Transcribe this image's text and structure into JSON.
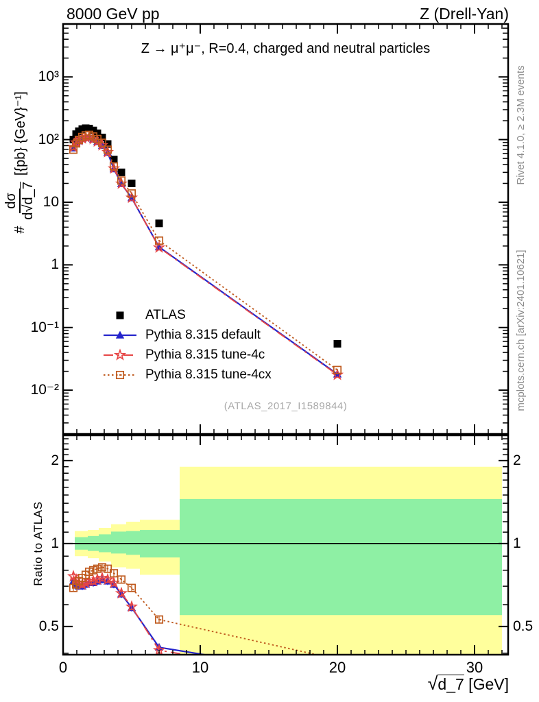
{
  "header": {
    "left": "8000 GeV pp",
    "right": "Z (Drell-Yan)"
  },
  "captions": {
    "rivet": "Rivet 4.1.0, ≥ 2.3M events",
    "mcplots": "mcplots.cern.ch [arXiv:2401.10621]",
    "watermark": "(ATLAS_2017_I1589844)"
  },
  "axes": {
    "y_main": {
      "prefix": "#",
      "frac_num": "dσ",
      "frac_den_pre": "d√",
      "frac_den_arg": "d_7",
      "units": "[{pb} {GeV}⁻¹]"
    },
    "y_ratio": {
      "label": "Ratio to ATLAS"
    },
    "x": {
      "radical": "√",
      "arg": "d_7",
      "units": " [GeV]"
    }
  },
  "chart_data": {
    "type": "line",
    "title": "Z → μ⁺μ⁻, R=0.4, charged and neutral particles",
    "xlabel": "√d_7 [GeV]",
    "ylabel": "# dσ/d√d_7 [{pb} {GeV}⁻¹]",
    "ratio_label": "Ratio to ATLAS",
    "xlim": [
      0,
      32.45
    ],
    "ylim_main": [
      0.002,
      7000
    ],
    "ylim_ratio": [
      0.395,
      2.47
    ],
    "x_ticks": {
      "major": [
        0,
        10,
        20,
        30
      ],
      "labels": [
        "0",
        "10",
        "20",
        "30"
      ]
    },
    "y_main_ticks": {
      "values": [
        1000,
        100,
        10,
        1,
        0.1,
        0.01
      ],
      "labels": [
        "10³",
        "10²",
        "10",
        "1",
        "10⁻¹",
        "10⁻²"
      ]
    },
    "y_ratio_ticks": {
      "values": [
        2,
        1,
        0.5
      ],
      "labels": [
        "2",
        "1",
        "0.5"
      ]
    },
    "x": [
      0.75,
      0.95,
      1.15,
      1.4,
      1.65,
      1.9,
      2.2,
      2.5,
      2.85,
      3.25,
      3.7,
      4.25,
      5.0,
      7.0,
      20.0
    ],
    "series": [
      {
        "name": "ATLAS",
        "color": "#000000",
        "marker": "filled-square",
        "line": "none",
        "y": [
          100,
          122,
          136,
          147,
          152,
          150,
          140,
          126,
          108,
          85,
          48,
          30,
          20,
          4.6,
          0.055
        ]
      },
      {
        "name": "Pythia 8.315 default",
        "color": "#2424cc",
        "marker": "filled-triangle",
        "line": "solid",
        "y": [
          73,
          87,
          95,
          103,
          108,
          108,
          101,
          92,
          80,
          62,
          34,
          19.7,
          11.7,
          1.93,
          0.018
        ],
        "ratio": [
          0.73,
          0.71,
          0.7,
          0.7,
          0.71,
          0.72,
          0.72,
          0.73,
          0.74,
          0.73,
          0.71,
          0.655,
          0.585,
          0.42,
          0.33
        ]
      },
      {
        "name": "Pythia 8.315 tune-4c",
        "color": "#e64545",
        "marker": "open-star",
        "line": "dashdot",
        "y": [
          76,
          90,
          98,
          104,
          109,
          110,
          102,
          93,
          81,
          63,
          34.6,
          19.8,
          11.8,
          1.89,
          0.0176
        ],
        "ratio": [
          0.76,
          0.74,
          0.72,
          0.71,
          0.72,
          0.73,
          0.73,
          0.74,
          0.75,
          0.74,
          0.72,
          0.66,
          0.59,
          0.41,
          0.32
        ]
      },
      {
        "name": "Pythia 8.315 tune-4cx",
        "color": "#bf5a1e",
        "marker": "open-square-dot",
        "line": "dotted",
        "y": [
          69,
          87,
          99,
          110,
          117,
          119,
          112,
          102,
          89,
          69,
          37.4,
          22.2,
          13.8,
          2.44,
          0.021
        ],
        "ratio": [
          0.69,
          0.71,
          0.73,
          0.75,
          0.77,
          0.79,
          0.8,
          0.81,
          0.82,
          0.81,
          0.78,
          0.74,
          0.69,
          0.53,
          0.38
        ]
      }
    ],
    "ratio_reference": 1,
    "ratio_bands": {
      "green_color": "#8ef0a4",
      "yellow_color": "#ffff9c",
      "bins": [
        {
          "x0": 0.85,
          "x1": 1.8,
          "green": [
            0.95,
            1.055
          ],
          "yellow": [
            0.9,
            1.11
          ]
        },
        {
          "x0": 1.8,
          "x1": 2.6,
          "green": [
            0.94,
            1.065
          ],
          "yellow": [
            0.885,
            1.12
          ]
        },
        {
          "x0": 2.6,
          "x1": 3.5,
          "green": [
            0.93,
            1.08
          ],
          "yellow": [
            0.86,
            1.14
          ]
        },
        {
          "x0": 3.5,
          "x1": 4.6,
          "green": [
            0.92,
            1.105
          ],
          "yellow": [
            0.82,
            1.175
          ]
        },
        {
          "x0": 4.6,
          "x1": 5.6,
          "green": [
            0.91,
            1.11
          ],
          "yellow": [
            0.81,
            1.2
          ]
        },
        {
          "x0": 5.6,
          "x1": 8.5,
          "green": [
            0.89,
            1.12
          ],
          "yellow": [
            0.77,
            1.22
          ]
        },
        {
          "x0": 8.5,
          "x1": 32.0,
          "green": [
            0.55,
            1.45
          ],
          "yellow": [
            0.38,
            1.9
          ]
        }
      ]
    },
    "legend_position": "middle-left",
    "grid": false
  }
}
